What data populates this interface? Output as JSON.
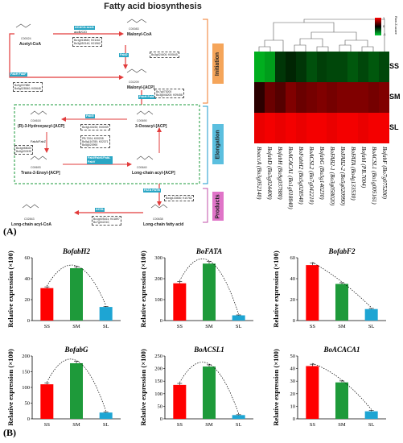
{
  "pathway": {
    "title": "Fatty acid biosynthesis",
    "panel_a_label": "(A)",
    "panel_b_label": "(B)",
    "compounds": {
      "acetyl_coa": "Acetyl-CoA",
      "acetyl_coa_id": "C00024",
      "malonyl_coa": "Malonyl-CoA",
      "malonyl_coa_id": "C00083",
      "malonyl_acp": "Malonyl-[ACP]",
      "malonyl_acp_id": "C01209",
      "hydroxyacyl": "(R)-3-Hydroxyacyl-[ACP]",
      "hydroxyacyl_id": "C04618",
      "oxoacyl": "3-Oxoacyl-[ACP]",
      "oxoacyl_id": "C00690",
      "enoyl": "Trans-2-Enoyl-[ACP]",
      "enoyl_id": "C00693",
      "long_acp": "Long-chain acyl-[ACP]",
      "long_acp_id": "C00640",
      "long_coa": "Long-chain acyl-CoA",
      "long_coa_id": "C02843",
      "long_fa": "Long-chain fatty acid",
      "long_fa_id": "C00638"
    },
    "enzymes": {
      "acaca": "ACACA accA",
      "accbcd": "accB/C/D",
      "fabd": "FabD",
      "fabh_fabf": "FabH FabF",
      "fabh2": "FabH FabB",
      "fabg": "FabG",
      "fabz": "FabA/FabZ",
      "fabi": "FabI/FabK/FabL FabV",
      "fata": "FATA FATB",
      "acsl": "ACSL"
    },
    "genes": {
      "acc_genes": "Bo1g018840; K01162\nBo3g052140; K01962",
      "fabd_genes": "Bo3g024400; K00645",
      "fabh_genes": "Bo9g037880\nBo5g028540; K00648",
      "fabf_genes": "Bo7g075200\nBo3g046200; K09458",
      "fabg_genes": "Bo3g140230; K00059",
      "fabz_genes": "Bo3g058020\nBo6g033190",
      "fabi_genes": "PB.7004; K00208\nBo5g116780; K02371\nBo5g020990",
      "fata_genes": "Bo4g133530; K10782",
      "acsl_genes": "Bo1g005161; K01897\nBo7g042210;"
    },
    "stages": [
      "Initiation",
      "Elongation",
      "Products"
    ]
  },
  "heatmap": {
    "rows": [
      "SS",
      "SM",
      "SL"
    ],
    "genes": [
      "BoaccA (Bo3g052140)",
      "BofabD (Bo3g024400)",
      "BofabH (Bo9g037880)",
      "BoACACA1 (Bo1g018840)",
      "BoFabH2 (Bo5g028540)",
      "BoACSL2 (Bo7g042210)",
      "BofabG (Bo3g140230)",
      "BoFAB2-1 (Bo3g058020)",
      "BoFAB2-2 (Bo5g020990)",
      "BoFATA (Bo4g133530)",
      "BofabI (PB.7004)",
      "BoACSL1 (Bo1g005161)",
      "BofabF (Bo7g075200)"
    ],
    "values": [
      [
        -0.9,
        -0.8,
        -0.2,
        -0.1,
        -0.2,
        -0.35,
        -0.25,
        -0.3,
        -0.3,
        -0.4,
        -0.3,
        -0.4,
        -0.3
      ],
      [
        0.2,
        0.5,
        0.4,
        0.6,
        0.5,
        0.55,
        0.6,
        0.55,
        0.6,
        0.6,
        0.6,
        0.55,
        0.6
      ],
      [
        1.1,
        1.15,
        1.1,
        1.15,
        1.1,
        1.15,
        1.15,
        1.1,
        1.15,
        1.15,
        1.1,
        1.15,
        1.15
      ]
    ],
    "legend_ticks": [
      "1",
      "0",
      "-1"
    ],
    "legend_title": "Row Z-score"
  },
  "chart_data": [
    {
      "type": "bar",
      "title": "BofabH2",
      "categories": [
        "SS",
        "SM",
        "SL"
      ],
      "values": [
        31,
        50,
        13
      ],
      "errors": [
        1.2,
        1.5,
        0.6
      ],
      "ylim": [
        0,
        60
      ],
      "yticks": [
        0,
        20,
        40,
        60
      ],
      "ylabel": "Relative expression (×100)",
      "colors": [
        "#ff0000",
        "#1e9a3a",
        "#1ea5d3"
      ]
    },
    {
      "type": "bar",
      "title": "BoFATA",
      "categories": [
        "SS",
        "SM",
        "SL"
      ],
      "values": [
        178,
        272,
        25
      ],
      "errors": [
        8,
        10,
        2
      ],
      "ylim": [
        0,
        300
      ],
      "yticks": [
        0,
        100,
        200,
        300
      ],
      "ylabel": "Relative expression (×100)",
      "colors": [
        "#ff0000",
        "#1e9a3a",
        "#1ea5d3"
      ]
    },
    {
      "type": "bar",
      "title": "BofabF2",
      "categories": [
        "SS",
        "SM",
        "SL"
      ],
      "values": [
        53,
        35,
        11
      ],
      "errors": [
        1.8,
        1.2,
        0.6
      ],
      "ylim": [
        0,
        60
      ],
      "yticks": [
        0,
        20,
        40,
        60
      ],
      "ylabel": "Relative expression (×100)",
      "colors": [
        "#ff0000",
        "#1e9a3a",
        "#1ea5d3"
      ]
    },
    {
      "type": "bar",
      "title": "BofabG",
      "categories": [
        "SS",
        "SM",
        "SL"
      ],
      "values": [
        110,
        177,
        20
      ],
      "errors": [
        4,
        6,
        1.5
      ],
      "ylim": [
        0,
        200
      ],
      "yticks": [
        0,
        50,
        100,
        150,
        200
      ],
      "ylabel": "Relative expression (×100)",
      "colors": [
        "#ff0000",
        "#1e9a3a",
        "#1ea5d3"
      ]
    },
    {
      "type": "bar",
      "title": "BoACSL1",
      "categories": [
        "SS",
        "SM",
        "SL"
      ],
      "values": [
        135,
        208,
        15
      ],
      "errors": [
        6,
        7,
        1.5
      ],
      "ylim": [
        0,
        250
      ],
      "yticks": [
        0,
        50,
        100,
        150,
        200,
        250
      ],
      "ylabel": "Relative expression (×100)",
      "colors": [
        "#ff0000",
        "#1e9a3a",
        "#1ea5d3"
      ]
    },
    {
      "type": "bar",
      "title": "BoACACA1",
      "categories": [
        "SS",
        "SM",
        "SL"
      ],
      "values": [
        42,
        29,
        6
      ],
      "errors": [
        1.5,
        1.2,
        0.8
      ],
      "ylim": [
        0,
        50
      ],
      "yticks": [
        0,
        10,
        20,
        30,
        40,
        50
      ],
      "ylabel": "Relative expression (×100)",
      "colors": [
        "#ff0000",
        "#1e9a3a",
        "#1ea5d3"
      ]
    }
  ]
}
